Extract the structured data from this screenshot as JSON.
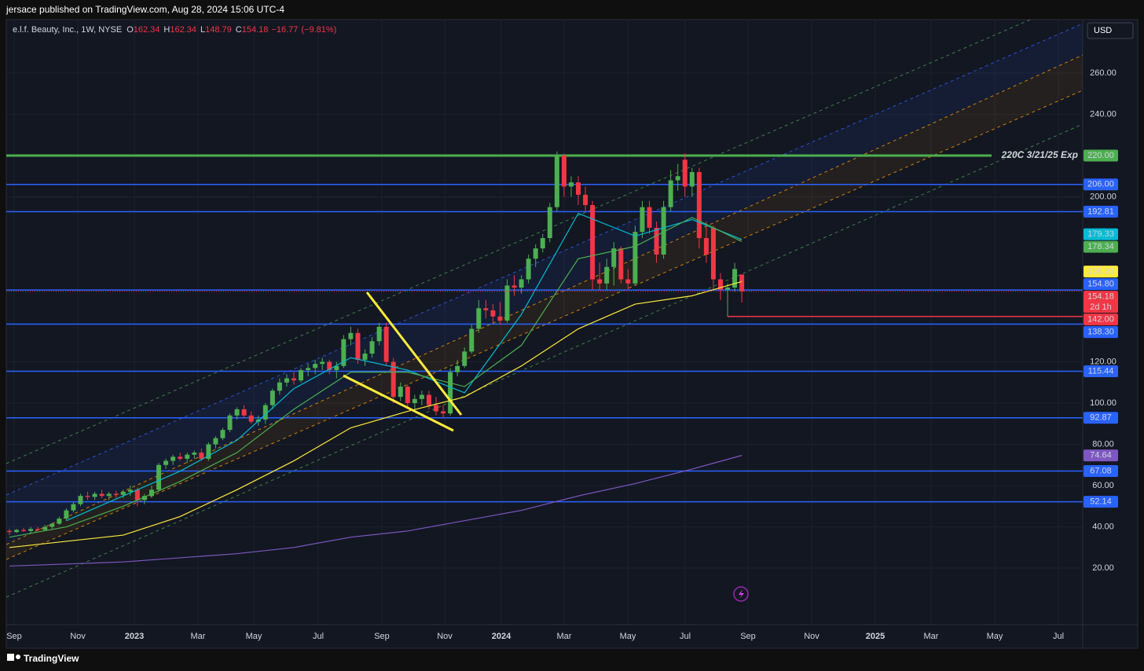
{
  "header": {
    "byline": "jersace published on TradingView.com, Aug 28, 2024 15:06 UTC-4",
    "footer_logo": "TradingView"
  },
  "chart_data": {
    "type": "candlestick",
    "title": "e.l.f. Beauty, Inc., 1W, NYSE",
    "ohlc": [
      {
        "label": "O",
        "value": 162.34
      },
      {
        "label": "H",
        "value": 162.34
      },
      {
        "label": "L",
        "value": 148.79
      },
      {
        "label": "C",
        "value": 154.18
      }
    ],
    "change": {
      "value": -16.77,
      "label": "−16.77"
    },
    "change_pct": {
      "value": -9.81,
      "label": "(−9.81%)"
    },
    "currency": "USD",
    "up_color": "#4caf50",
    "down_color": "#f23645",
    "categories": [
      "Sep",
      "Nov",
      "2023",
      "Mar",
      "May",
      "Jul",
      "Sep",
      "Nov",
      "2024",
      "Mar",
      "May",
      "Jul",
      "Sep",
      "Nov",
      "2025",
      "Mar",
      "May",
      "Jul"
    ],
    "ylim": [
      -5.5,
      285.9
    ],
    "yticks": [
      {
        "value": 20,
        "label": "20.00"
      },
      {
        "value": 40,
        "label": "40.00"
      },
      {
        "value": 60,
        "label": "60.00"
      },
      {
        "value": 80,
        "label": "80.00"
      },
      {
        "value": 100,
        "label": "100.00"
      },
      {
        "value": 120,
        "label": "120.00"
      },
      {
        "value": 200,
        "label": "200.00"
      },
      {
        "value": 240,
        "label": "240.00"
      },
      {
        "value": 260,
        "label": "260.00"
      }
    ],
    "grid": true,
    "candles": [
      [
        38,
        39,
        36,
        37.5
      ],
      [
        37.5,
        39,
        37,
        38.5
      ],
      [
        38.5,
        39.5,
        37.5,
        38
      ],
      [
        38,
        40,
        37,
        39
      ],
      [
        39,
        40,
        38,
        38.5
      ],
      [
        38.5,
        41,
        38,
        40
      ],
      [
        40,
        42,
        39,
        41.5
      ],
      [
        41.5,
        45,
        41,
        44
      ],
      [
        44,
        49,
        43,
        48
      ],
      [
        48,
        52,
        47,
        51
      ],
      [
        51,
        56,
        50,
        55
      ],
      [
        55,
        57,
        53,
        54.5
      ],
      [
        54.5,
        57,
        53,
        56
      ],
      [
        56,
        58,
        54,
        55
      ],
      [
        55,
        57,
        53,
        56
      ],
      [
        56,
        57.5,
        54,
        55.5
      ],
      [
        55.5,
        58,
        54,
        57
      ],
      [
        57,
        60,
        55,
        58
      ],
      [
        58,
        59,
        50,
        53
      ],
      [
        53,
        56,
        51,
        55
      ],
      [
        55,
        60,
        54,
        58
      ],
      [
        58,
        71,
        57,
        70
      ],
      [
        70,
        73,
        68,
        72
      ],
      [
        72,
        75,
        70,
        74
      ],
      [
        74,
        76,
        72,
        73
      ],
      [
        73,
        76,
        71,
        75
      ],
      [
        75,
        77,
        73,
        76
      ],
      [
        76,
        78,
        72,
        73
      ],
      [
        73,
        81,
        72,
        80
      ],
      [
        80,
        84,
        78,
        83
      ],
      [
        83,
        88,
        82,
        87
      ],
      [
        87,
        95,
        86,
        94
      ],
      [
        94,
        98,
        92,
        97
      ],
      [
        97,
        99,
        93,
        94
      ],
      [
        94,
        96,
        90,
        91
      ],
      [
        91,
        94,
        89,
        92
      ],
      [
        92,
        100,
        90,
        99
      ],
      [
        99,
        107,
        97,
        106
      ],
      [
        106,
        112,
        104,
        110
      ],
      [
        110,
        114,
        108,
        112
      ],
      [
        112,
        115,
        109,
        111
      ],
      [
        111,
        117,
        110,
        116
      ],
      [
        116,
        119,
        113,
        117
      ],
      [
        117,
        121,
        114,
        119
      ],
      [
        119,
        122,
        116,
        120
      ],
      [
        120,
        121,
        114,
        116
      ],
      [
        116,
        120,
        112,
        118
      ],
      [
        118,
        133,
        117,
        131
      ],
      [
        131,
        137,
        128,
        134
      ],
      [
        134,
        136,
        119,
        121
      ],
      [
        121,
        126,
        118,
        124
      ],
      [
        124,
        132,
        122,
        130
      ],
      [
        130,
        139,
        128,
        137
      ],
      [
        137,
        139,
        118,
        120
      ],
      [
        120,
        122,
        100,
        103
      ],
      [
        103,
        110,
        101,
        108
      ],
      [
        108,
        109,
        98,
        100
      ],
      [
        100,
        104,
        97,
        102
      ],
      [
        102,
        106,
        99,
        104
      ],
      [
        104,
        106,
        97,
        99
      ],
      [
        99,
        103,
        94,
        96
      ],
      [
        96,
        99,
        93,
        95
      ],
      [
        95,
        117,
        94,
        115
      ],
      [
        115,
        121,
        113,
        118
      ],
      [
        118,
        127,
        117,
        125
      ],
      [
        125,
        138,
        124,
        136
      ],
      [
        136,
        150,
        134,
        146
      ],
      [
        146,
        150,
        141,
        145
      ],
      [
        145,
        148,
        139,
        142
      ],
      [
        142,
        149,
        138,
        140
      ],
      [
        140,
        160,
        139,
        157
      ],
      [
        157,
        162,
        152,
        156
      ],
      [
        156,
        162,
        153,
        160
      ],
      [
        160,
        172,
        158,
        170
      ],
      [
        170,
        177,
        166,
        175
      ],
      [
        175,
        182,
        173,
        180
      ],
      [
        180,
        197,
        178,
        195
      ],
      [
        195,
        222,
        193,
        220
      ],
      [
        220,
        221,
        200,
        205
      ],
      [
        205,
        210,
        200,
        207
      ],
      [
        207,
        210,
        196,
        201
      ],
      [
        201,
        205,
        193,
        196
      ],
      [
        196,
        198,
        155,
        160
      ],
      [
        160,
        168,
        155,
        158
      ],
      [
        158,
        170,
        155,
        166
      ],
      [
        166,
        178,
        157,
        175
      ],
      [
        175,
        176,
        158,
        160
      ],
      [
        160,
        165,
        155,
        158
      ],
      [
        158,
        186,
        157,
        183
      ],
      [
        183,
        198,
        180,
        195
      ],
      [
        195,
        198,
        182,
        185
      ],
      [
        185,
        188,
        168,
        172
      ],
      [
        172,
        198,
        170,
        195
      ],
      [
        195,
        213,
        193,
        208
      ],
      [
        208,
        216,
        203,
        210
      ],
      [
        218,
        221,
        200,
        205
      ],
      [
        205,
        214,
        200,
        212
      ],
      [
        212,
        214,
        175,
        180
      ],
      [
        180,
        188,
        168,
        172
      ],
      [
        185,
        186,
        155,
        160
      ],
      [
        160,
        163,
        150,
        155
      ],
      [
        155,
        158,
        142,
        156
      ],
      [
        156,
        168,
        154,
        165
      ],
      [
        162.34,
        162.34,
        148.79,
        154.18
      ]
    ],
    "moving_averages": [
      {
        "color": "#00bcd4",
        "x": [
          8,
          16,
          24,
          32,
          40,
          48,
          56,
          64,
          72,
          80,
          88,
          96,
          103
        ],
        "values": [
          43,
          55,
          67,
          82,
          107,
          122,
          116,
          105,
          143,
          192,
          181,
          189,
          179.33
        ]
      },
      {
        "color": "#4caf50",
        "x": [
          0,
          8,
          16,
          24,
          32,
          40,
          48,
          56,
          64,
          72,
          80,
          88,
          96,
          103
        ],
        "values": [
          35,
          40,
          50,
          62,
          76,
          97,
          115,
          115,
          108,
          128,
          170,
          176,
          190,
          178.34
        ]
      },
      {
        "color": "#ffeb3b",
        "x": [
          0,
          8,
          16,
          24,
          32,
          40,
          48,
          56,
          64,
          72,
          80,
          88,
          96,
          103
        ],
        "values": [
          30,
          33,
          36,
          45,
          58,
          72,
          88,
          96,
          103,
          118,
          136,
          148,
          152,
          158.93
        ]
      },
      {
        "color": "#7e57c2",
        "x": [
          0,
          8,
          16,
          24,
          32,
          40,
          48,
          56,
          64,
          72,
          80,
          88,
          96,
          103
        ],
        "values": [
          21,
          22,
          23,
          25,
          27,
          30,
          35,
          38,
          43,
          48,
          55,
          61,
          68,
          74.64
        ]
      }
    ],
    "levels": [
      {
        "price": {
          "value": 220,
          "label": "220.00"
        },
        "color": "#4caf50",
        "annotation": "220C 3/21/25 Exp"
      },
      {
        "price": {
          "value": 206,
          "label": "206.00"
        },
        "color": "#2962ff"
      },
      {
        "price": 192.81,
        "color": "#2962ff"
      },
      {
        "price": {
          "value": 154.8,
          "label": "154.80"
        },
        "color": "#2962ff"
      },
      {
        "price": {
          "value": 142,
          "label": "142.00"
        },
        "color": "#f23645"
      },
      {
        "price": {
          "value": 138.3,
          "label": "138.30"
        },
        "color": "#2962ff"
      },
      {
        "price": 115.44,
        "color": "#2962ff"
      },
      {
        "price": 92.87,
        "color": "#2962ff"
      },
      {
        "price": 67.08,
        "color": "#2962ff"
      },
      {
        "price": 52.14,
        "color": "#2962ff"
      }
    ],
    "countdown": "2d 1h"
  }
}
